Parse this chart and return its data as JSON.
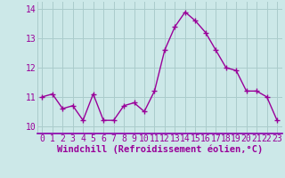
{
  "x": [
    0,
    1,
    2,
    3,
    4,
    5,
    6,
    7,
    8,
    9,
    10,
    11,
    12,
    13,
    14,
    15,
    16,
    17,
    18,
    19,
    20,
    21,
    22,
    23
  ],
  "y": [
    11.0,
    11.1,
    10.6,
    10.7,
    10.2,
    11.1,
    10.2,
    10.2,
    10.7,
    10.8,
    10.5,
    11.2,
    12.6,
    13.4,
    13.9,
    13.6,
    13.2,
    12.6,
    12.0,
    11.9,
    11.2,
    11.2,
    11.0,
    10.2
  ],
  "line_color": "#990099",
  "marker": "+",
  "marker_size": 4,
  "bg_color": "#cce8e8",
  "grid_color": "#aacccc",
  "axis_color": "#8800aa",
  "ylabel_ticks": [
    10,
    11,
    12,
    13,
    14
  ],
  "xlabel": "Windchill (Refroidissement éolien,°C)",
  "xlim": [
    -0.5,
    23.5
  ],
  "ylim": [
    9.75,
    14.25
  ],
  "xlabel_fontsize": 7.5,
  "tick_fontsize": 7,
  "line_width": 1.0,
  "marker_edge_width": 1.0
}
